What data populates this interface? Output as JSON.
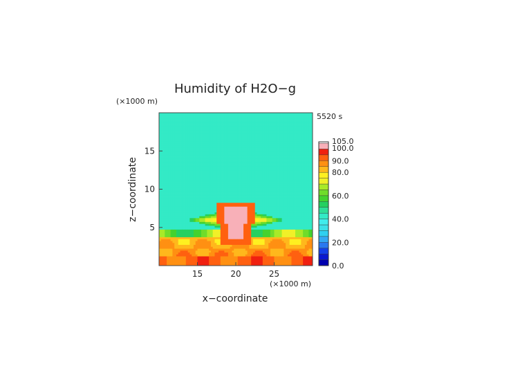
{
  "chart_data": {
    "type": "heatmap",
    "title": "Humidity of H2O−g",
    "time_label": "5520 s",
    "xlabel": "x−coordinate",
    "ylabel": "z−coordinate",
    "x_unit": "(×1000 m)",
    "y_unit": "(×1000 m)",
    "xlim": [
      10,
      30
    ],
    "ylim": [
      0,
      20
    ],
    "x_ticks": [
      15,
      20,
      25
    ],
    "y_ticks": [
      5,
      10,
      15
    ],
    "colorbar": {
      "levels": [
        {
          "value": 0.0,
          "color": "#0000b0"
        },
        {
          "value": 5.0,
          "color": "#0a18d0"
        },
        {
          "value": 10.0,
          "color": "#1440e8"
        },
        {
          "value": 15.0,
          "color": "#2a78f0"
        },
        {
          "value": 20.0,
          "color": "#34a8f4"
        },
        {
          "value": 25.0,
          "color": "#30d0f0"
        },
        {
          "value": 30.0,
          "color": "#3ce0e8"
        },
        {
          "value": 35.0,
          "color": "#40ecec"
        },
        {
          "value": 40.0,
          "color": "#33eac6"
        },
        {
          "value": 45.0,
          "color": "#2ede98"
        },
        {
          "value": 50.0,
          "color": "#24d060"
        },
        {
          "value": 55.0,
          "color": "#44d22e"
        },
        {
          "value": 60.0,
          "color": "#70dc2a"
        },
        {
          "value": 65.0,
          "color": "#a8ea28"
        },
        {
          "value": 70.0,
          "color": "#f0f028"
        },
        {
          "value": 75.0,
          "color": "#fff020"
        },
        {
          "value": 80.0,
          "color": "#ffb81c"
        },
        {
          "value": 85.0,
          "color": "#ff9012"
        },
        {
          "value": 90.0,
          "color": "#ff6010"
        },
        {
          "value": 95.0,
          "color": "#f02010"
        },
        {
          "value": 100.0,
          "color": "#f8b0b8"
        },
        {
          "value": 105.0,
          "color": "#ffffff"
        }
      ],
      "labels": [
        "0.0",
        "20.0",
        "40.0",
        "60.0",
        "80.0",
        "90.0",
        "100.0",
        "105.0"
      ],
      "label_values": [
        0,
        20,
        40,
        60,
        80,
        90,
        100,
        105
      ]
    },
    "field": {
      "description_of_values": "relative humidity (%) sampled on a coarse grid",
      "background_value": 42,
      "surface_layer": {
        "top_z": 4.8,
        "value_near_ground": 92,
        "value_mid": 78
      },
      "cloud_core": {
        "x_center": 20,
        "z_base": 3.5,
        "z_top": 7.7,
        "width": 1.5,
        "value": 102
      },
      "anvil": {
        "z": 6.0,
        "x_extent": [
          14.5,
          26.5
        ],
        "value": 72
      }
    }
  }
}
